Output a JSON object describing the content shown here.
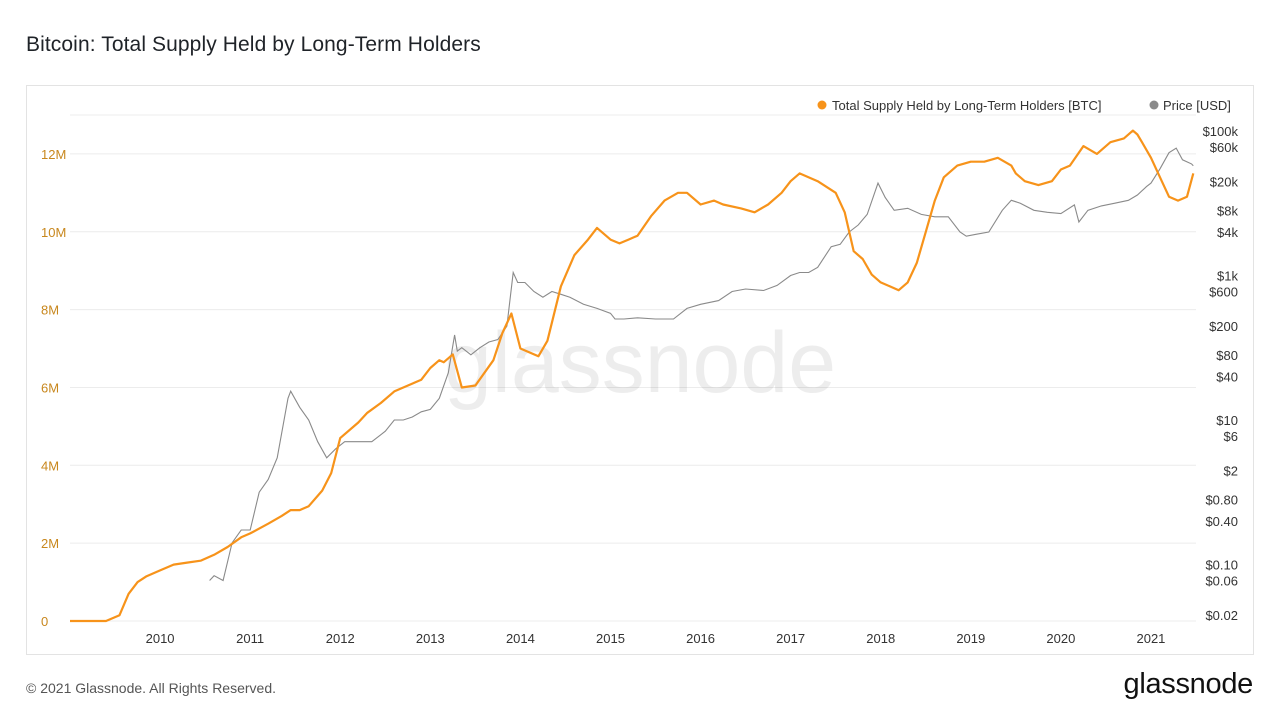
{
  "title": "Bitcoin: Total Supply Held by Long-Term Holders",
  "footer": "© 2021 Glassnode. All Rights Reserved.",
  "brand": "glassnode",
  "watermark": "glassnode",
  "colors": {
    "lth": "#f7931a",
    "price": "#8a8a8a",
    "grid": "#ececec"
  },
  "chart_data": {
    "type": "line",
    "title": "Bitcoin: Total Supply Held by Long-Term Holders",
    "legend_placement": "top-right",
    "grid": true,
    "x_ticks": [
      "2010",
      "2011",
      "2012",
      "2013",
      "2014",
      "2015",
      "2016",
      "2017",
      "2018",
      "2019",
      "2020",
      "2021"
    ],
    "x_range": [
      2009.0,
      2021.5
    ],
    "y_left": {
      "range": [
        0,
        13000000
      ],
      "ticks": [
        {
          "value": 0,
          "label": "0"
        },
        {
          "value": 2000000,
          "label": "2M"
        },
        {
          "value": 4000000,
          "label": "4M"
        },
        {
          "value": 6000000,
          "label": "6M"
        },
        {
          "value": 8000000,
          "label": "8M"
        },
        {
          "value": 10000000,
          "label": "10M"
        },
        {
          "value": 12000000,
          "label": "12M"
        }
      ]
    },
    "y_right": {
      "scale": "log",
      "range": [
        0.02,
        100000
      ],
      "ticks": [
        {
          "value": 100000,
          "label": "$100k"
        },
        {
          "value": 60000,
          "label": "$60k"
        },
        {
          "value": 20000,
          "label": "$20k"
        },
        {
          "value": 8000,
          "label": "$8k"
        },
        {
          "value": 4000,
          "label": "$4k"
        },
        {
          "value": 1000,
          "label": "$1k"
        },
        {
          "value": 600,
          "label": "$600"
        },
        {
          "value": 200,
          "label": "$200"
        },
        {
          "value": 80,
          "label": "$80"
        },
        {
          "value": 40,
          "label": "$40"
        },
        {
          "value": 10,
          "label": "$10"
        },
        {
          "value": 6,
          "label": "$6"
        },
        {
          "value": 2,
          "label": "$2"
        },
        {
          "value": 0.8,
          "label": "$0.80"
        },
        {
          "value": 0.4,
          "label": "$0.40"
        },
        {
          "value": 0.1,
          "label": "$0.10"
        },
        {
          "value": 0.06,
          "label": "$0.06"
        },
        {
          "value": 0.02,
          "label": "$0.02"
        }
      ]
    },
    "series": [
      {
        "name": "Total Supply Held by Long-Term Holders [BTC]",
        "axis": "left",
        "x": [
          2009.0,
          2009.4,
          2009.55,
          2009.65,
          2009.75,
          2009.85,
          2010.0,
          2010.15,
          2010.3,
          2010.45,
          2010.6,
          2010.75,
          2010.9,
          2011.0,
          2011.2,
          2011.35,
          2011.45,
          2011.55,
          2011.65,
          2011.8,
          2011.9,
          2012.0,
          2012.2,
          2012.3,
          2012.45,
          2012.6,
          2012.8,
          2012.9,
          2013.0,
          2013.1,
          2013.15,
          2013.25,
          2013.35,
          2013.5,
          2013.7,
          2013.8,
          2013.9,
          2014.0,
          2014.1,
          2014.2,
          2014.3,
          2014.45,
          2014.6,
          2014.75,
          2014.85,
          2015.0,
          2015.1,
          2015.2,
          2015.3,
          2015.45,
          2015.6,
          2015.75,
          2015.85,
          2016.0,
          2016.15,
          2016.25,
          2016.45,
          2016.6,
          2016.75,
          2016.9,
          2017.0,
          2017.1,
          2017.3,
          2017.5,
          2017.6,
          2017.7,
          2017.8,
          2017.9,
          2018.0,
          2018.1,
          2018.2,
          2018.3,
          2018.4,
          2018.5,
          2018.6,
          2018.7,
          2018.85,
          2019.0,
          2019.15,
          2019.3,
          2019.45,
          2019.5,
          2019.6,
          2019.75,
          2019.9,
          2020.0,
          2020.1,
          2020.25,
          2020.4,
          2020.55,
          2020.7,
          2020.8,
          2020.85,
          2020.9,
          2021.0,
          2021.1,
          2021.2,
          2021.3,
          2021.4,
          2021.47
        ],
        "values": [
          0,
          0,
          150000,
          700000,
          1000000,
          1150000,
          1300000,
          1450000,
          1500000,
          1550000,
          1700000,
          1900000,
          2150000,
          2250000,
          2500000,
          2700000,
          2850000,
          2850000,
          2950000,
          3350000,
          3800000,
          4700000,
          5100000,
          5350000,
          5600000,
          5900000,
          6100000,
          6200000,
          6500000,
          6700000,
          6650000,
          6850000,
          6000000,
          6050000,
          6700000,
          7400000,
          7900000,
          7000000,
          6900000,
          6800000,
          7200000,
          8600000,
          9400000,
          9800000,
          10100000,
          9800000,
          9700000,
          9800000,
          9900000,
          10400000,
          10800000,
          11000000,
          11000000,
          10700000,
          10800000,
          10700000,
          10600000,
          10500000,
          10700000,
          11000000,
          11300000,
          11500000,
          11300000,
          11000000,
          10500000,
          9500000,
          9300000,
          8900000,
          8700000,
          8600000,
          8500000,
          8700000,
          9200000,
          10000000,
          10800000,
          11400000,
          11700000,
          11800000,
          11800000,
          11900000,
          11700000,
          11500000,
          11300000,
          11200000,
          11300000,
          11600000,
          11700000,
          12200000,
          12000000,
          12300000,
          12400000,
          12600000,
          12500000,
          12300000,
          11900000,
          11400000,
          10900000,
          10800000,
          10900000,
          11500000
        ]
      },
      {
        "name": "Price [USD]",
        "axis": "right",
        "x": [
          2010.55,
          2010.6,
          2010.7,
          2010.8,
          2010.9,
          2011.0,
          2011.1,
          2011.2,
          2011.3,
          2011.42,
          2011.45,
          2011.55,
          2011.65,
          2011.75,
          2011.85,
          2011.95,
          2012.05,
          2012.2,
          2012.35,
          2012.5,
          2012.6,
          2012.7,
          2012.8,
          2012.9,
          2013.0,
          2013.1,
          2013.2,
          2013.27,
          2013.3,
          2013.35,
          2013.45,
          2013.55,
          2013.65,
          2013.75,
          2013.85,
          2013.92,
          2013.97,
          2014.05,
          2014.15,
          2014.25,
          2014.35,
          2014.45,
          2014.55,
          2014.7,
          2014.85,
          2015.0,
          2015.05,
          2015.15,
          2015.3,
          2015.5,
          2015.7,
          2015.85,
          2016.0,
          2016.2,
          2016.35,
          2016.5,
          2016.7,
          2016.85,
          2017.0,
          2017.1,
          2017.2,
          2017.3,
          2017.45,
          2017.55,
          2017.65,
          2017.75,
          2017.85,
          2017.97,
          2018.05,
          2018.15,
          2018.3,
          2018.45,
          2018.6,
          2018.75,
          2018.88,
          2018.95,
          2019.05,
          2019.2,
          2019.35,
          2019.45,
          2019.55,
          2019.7,
          2019.85,
          2020.0,
          2020.15,
          2020.2,
          2020.3,
          2020.45,
          2020.6,
          2020.75,
          2020.85,
          2020.95,
          2021.0,
          2021.1,
          2021.2,
          2021.28,
          2021.35,
          2021.45,
          2021.47
        ],
        "values": [
          0.06,
          0.07,
          0.06,
          0.2,
          0.3,
          0.3,
          1,
          1.5,
          3,
          20,
          25,
          15,
          10,
          5,
          3,
          4,
          5,
          5,
          5,
          7,
          10,
          10,
          11,
          13,
          14,
          20,
          45,
          150,
          90,
          100,
          80,
          100,
          120,
          130,
          200,
          1100,
          800,
          800,
          600,
          500,
          600,
          550,
          500,
          400,
          350,
          300,
          250,
          250,
          260,
          250,
          250,
          350,
          400,
          450,
          600,
          650,
          620,
          730,
          1000,
          1100,
          1100,
          1300,
          2500,
          2700,
          4000,
          5000,
          7000,
          19000,
          12000,
          8000,
          8500,
          7000,
          6500,
          6500,
          4000,
          3500,
          3700,
          4000,
          8000,
          11000,
          10000,
          8000,
          7500,
          7200,
          9500,
          5500,
          8000,
          9200,
          10000,
          11000,
          13000,
          17000,
          19000,
          30000,
          50000,
          58000,
          40000,
          35000,
          33000
        ]
      }
    ]
  }
}
